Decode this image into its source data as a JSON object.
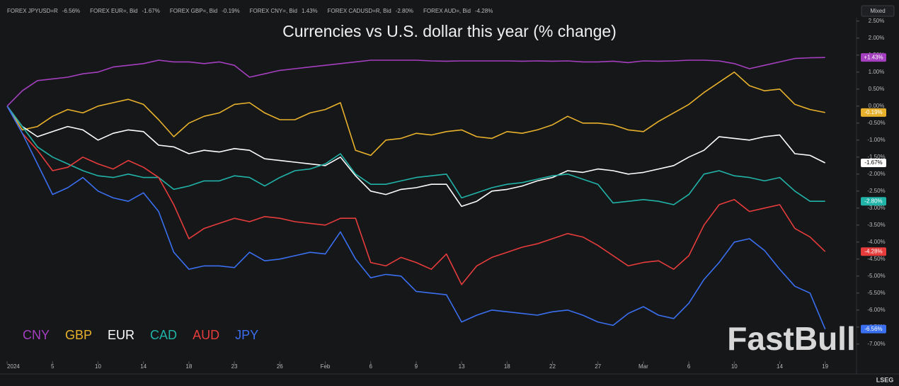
{
  "chart_data": {
    "type": "line",
    "title": "Currencies vs U.S. dollar this year (% change)",
    "header_legend": [
      {
        "name": "FOREX JPYUSD=R",
        "change": "-6.56%",
        "color": "#3a6ff0"
      },
      {
        "name": "FOREX EUR=, Bid",
        "change": "-1.67%",
        "color": "#ffffff"
      },
      {
        "name": "FOREX GBP=, Bid",
        "change": "-0.19%",
        "color": "#e8b12c"
      },
      {
        "name": "FOREX CNY=, Bid",
        "change": "1.43%",
        "color": "#a43fbf"
      },
      {
        "name": "FOREX CADUSD=R, Bid",
        "change": "-2.80%",
        "color": "#21b3a8"
      },
      {
        "name": "FOREX AUD=, Bid",
        "change": "-4.28%",
        "color": "#e63c3c"
      }
    ],
    "scale_button": "Mixed",
    "watermark": "FastBull",
    "source": "LSEG",
    "x": [
      0,
      1,
      2,
      3,
      4,
      5,
      6,
      7,
      8,
      9,
      10,
      11,
      12,
      13,
      14,
      15,
      16,
      17,
      18,
      19,
      20,
      21,
      22,
      23,
      24,
      25,
      26,
      27,
      28,
      29,
      30,
      31,
      32,
      33,
      34,
      35,
      36,
      37,
      38,
      39,
      40,
      41,
      42,
      43,
      44,
      45,
      46,
      47,
      48,
      49,
      50,
      51,
      52,
      53,
      54
    ],
    "xlim": [
      -0.47,
      56.07
    ],
    "xticks": [
      {
        "value": 0,
        "label": "2024"
      },
      {
        "value": 3,
        "label": "5"
      },
      {
        "value": 6,
        "label": "10"
      },
      {
        "value": 9,
        "label": "14"
      },
      {
        "value": 12,
        "label": "18"
      },
      {
        "value": 15,
        "label": "23"
      },
      {
        "value": 18,
        "label": "26"
      },
      {
        "value": 21,
        "label": "Feb"
      },
      {
        "value": 24,
        "label": "6"
      },
      {
        "value": 27,
        "label": "9"
      },
      {
        "value": 30,
        "label": "13"
      },
      {
        "value": 33,
        "label": "18"
      },
      {
        "value": 36,
        "label": "22"
      },
      {
        "value": 39,
        "label": "27"
      },
      {
        "value": 42,
        "label": "Mar"
      },
      {
        "value": 45,
        "label": "6"
      },
      {
        "value": 48,
        "label": "10"
      },
      {
        "value": 51,
        "label": "14"
      },
      {
        "value": 54,
        "label": "19"
      }
    ],
    "ylim": [
      -7.6,
      2.6
    ],
    "yticks": [
      {
        "value": 2.5,
        "label": "2.50%"
      },
      {
        "value": 2,
        "label": "2.00%"
      },
      {
        "value": 1.5,
        "label": "1.50%"
      },
      {
        "value": 1,
        "label": "1.00%"
      },
      {
        "value": 0.5,
        "label": "0.50%"
      },
      {
        "value": 0,
        "label": "0.00%"
      },
      {
        "value": -0.5,
        "label": "-0.50%"
      },
      {
        "value": -1,
        "label": "-1.00%"
      },
      {
        "value": -1.5,
        "label": "-1.50%"
      },
      {
        "value": -2,
        "label": "-2.00%"
      },
      {
        "value": -2.5,
        "label": "-2.50%"
      },
      {
        "value": -3,
        "label": "-3.00%"
      },
      {
        "value": -3.5,
        "label": "-3.50%"
      },
      {
        "value": -4,
        "label": "-4.00%"
      },
      {
        "value": -4.5,
        "label": "-4.50%"
      },
      {
        "value": -5,
        "label": "-5.00%"
      },
      {
        "value": -5.5,
        "label": "-5.50%"
      },
      {
        "value": -6,
        "label": "-6.00%"
      },
      {
        "value": -6.5,
        "label": "-6.50%"
      },
      {
        "value": -7,
        "label": "-7.00%"
      }
    ],
    "series": [
      {
        "name": "CNY",
        "color": "#a43fbf",
        "last_label": "+1.43%",
        "values": [
          0,
          0.45,
          0.75,
          0.8,
          0.85,
          0.95,
          1.0,
          1.15,
          1.2,
          1.25,
          1.35,
          1.3,
          1.3,
          1.25,
          1.3,
          1.2,
          0.85,
          0.95,
          1.05,
          1.1,
          1.15,
          1.2,
          1.25,
          1.3,
          1.35,
          1.35,
          1.35,
          1.35,
          1.33,
          1.32,
          1.33,
          1.33,
          1.33,
          1.33,
          1.32,
          1.33,
          1.32,
          1.33,
          1.3,
          1.3,
          1.32,
          1.28,
          1.33,
          1.32,
          1.33,
          1.35,
          1.35,
          1.33,
          1.25,
          1.1,
          1.2,
          1.3,
          1.4,
          1.42,
          1.43
        ]
      },
      {
        "name": "GBP",
        "color": "#e8b12c",
        "last_label": "-0.19%",
        "values": [
          0,
          -0.7,
          -0.6,
          -0.3,
          -0.1,
          -0.2,
          0,
          0.1,
          0.2,
          0.05,
          -0.4,
          -0.9,
          -0.5,
          -0.3,
          -0.2,
          0.05,
          0.1,
          -0.2,
          -0.4,
          -0.4,
          -0.2,
          -0.1,
          0.1,
          -1.3,
          -1.45,
          -1.0,
          -0.95,
          -0.8,
          -0.85,
          -0.75,
          -0.7,
          -0.9,
          -0.95,
          -0.75,
          -0.8,
          -0.7,
          -0.55,
          -0.3,
          -0.5,
          -0.5,
          -0.55,
          -0.7,
          -0.75,
          -0.45,
          -0.2,
          0.05,
          0.4,
          0.7,
          1.0,
          0.6,
          0.45,
          0.5,
          0.05,
          -0.1,
          -0.19
        ]
      },
      {
        "name": "EUR",
        "color": "#ffffff",
        "last_label": "-1.67%",
        "values": [
          0,
          -0.6,
          -0.9,
          -0.75,
          -0.6,
          -0.7,
          -1.0,
          -0.8,
          -0.7,
          -0.75,
          -1.15,
          -1.2,
          -1.4,
          -1.3,
          -1.35,
          -1.25,
          -1.3,
          -1.55,
          -1.6,
          -1.65,
          -1.7,
          -1.75,
          -1.5,
          -2.05,
          -2.5,
          -2.6,
          -2.45,
          -2.4,
          -2.3,
          -2.3,
          -2.95,
          -2.8,
          -2.5,
          -2.45,
          -2.35,
          -2.2,
          -2.1,
          -1.9,
          -1.95,
          -1.85,
          -1.9,
          -2.0,
          -1.95,
          -1.85,
          -1.75,
          -1.5,
          -1.3,
          -0.9,
          -0.95,
          -1.0,
          -0.9,
          -0.85,
          -1.4,
          -1.45,
          -1.67
        ]
      },
      {
        "name": "CAD",
        "color": "#21b3a8",
        "last_label": "-2.80%",
        "values": [
          0,
          -0.6,
          -1.2,
          -1.5,
          -1.7,
          -1.9,
          -2.05,
          -2.1,
          -2.0,
          -2.1,
          -2.1,
          -2.45,
          -2.35,
          -2.2,
          -2.2,
          -2.05,
          -2.1,
          -2.35,
          -2.1,
          -1.9,
          -1.85,
          -1.7,
          -1.4,
          -2.0,
          -2.3,
          -2.3,
          -2.2,
          -2.1,
          -2.05,
          -2.0,
          -2.7,
          -2.55,
          -2.4,
          -2.3,
          -2.25,
          -2.15,
          -2.05,
          -2.0,
          -2.15,
          -2.3,
          -2.85,
          -2.8,
          -2.75,
          -2.8,
          -2.9,
          -2.6,
          -2.0,
          -1.9,
          -2.05,
          -2.1,
          -2.2,
          -2.1,
          -2.5,
          -2.8,
          -2.8
        ]
      },
      {
        "name": "AUD",
        "color": "#e63c3c",
        "last_label": "-4.28%",
        "values": [
          0,
          -0.8,
          -1.3,
          -1.9,
          -1.8,
          -1.5,
          -1.7,
          -1.85,
          -1.6,
          -1.8,
          -2.1,
          -2.9,
          -3.9,
          -3.6,
          -3.45,
          -3.3,
          -3.4,
          -3.25,
          -3.3,
          -3.4,
          -3.45,
          -3.5,
          -3.3,
          -3.3,
          -4.6,
          -4.7,
          -4.45,
          -4.6,
          -4.8,
          -4.35,
          -5.25,
          -4.7,
          -4.45,
          -4.3,
          -4.15,
          -4.05,
          -3.9,
          -3.75,
          -3.85,
          -4.1,
          -4.4,
          -4.7,
          -4.6,
          -4.55,
          -4.8,
          -4.4,
          -3.5,
          -2.9,
          -2.75,
          -3.1,
          -3.0,
          -2.9,
          -3.6,
          -3.85,
          -4.28
        ]
      },
      {
        "name": "JPY",
        "color": "#3a6ff0",
        "last_label": "-6.56%",
        "values": [
          0,
          -0.8,
          -1.7,
          -2.6,
          -2.4,
          -2.1,
          -2.5,
          -2.7,
          -2.8,
          -2.55,
          -3.1,
          -4.3,
          -4.8,
          -4.7,
          -4.7,
          -4.75,
          -4.3,
          -4.55,
          -4.5,
          -4.4,
          -4.3,
          -4.35,
          -3.7,
          -4.5,
          -5.05,
          -4.95,
          -5.0,
          -5.45,
          -5.5,
          -5.55,
          -6.35,
          -6.15,
          -6.0,
          -6.05,
          -6.1,
          -6.15,
          -6.05,
          -6.0,
          -6.15,
          -6.35,
          -6.45,
          -6.1,
          -5.9,
          -6.15,
          -6.25,
          -5.8,
          -5.1,
          -4.6,
          -4.0,
          -3.9,
          -4.25,
          -4.8,
          -5.3,
          -5.5,
          -6.56
        ]
      }
    ]
  }
}
